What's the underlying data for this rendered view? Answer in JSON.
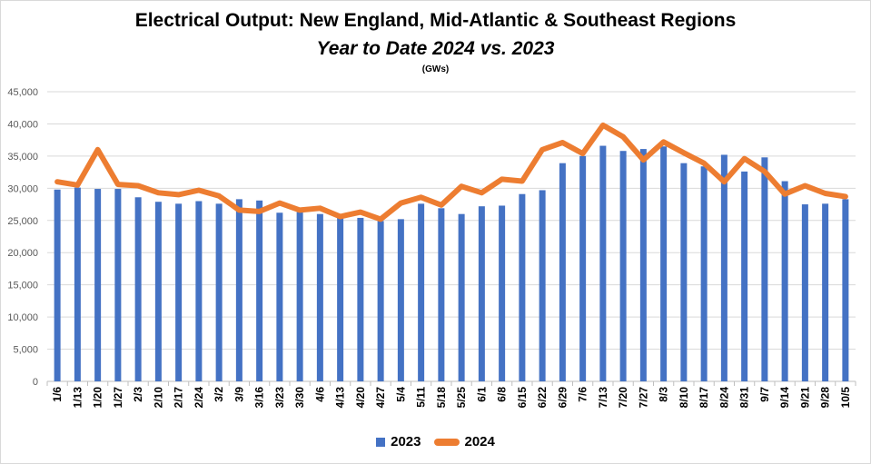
{
  "chart_data": {
    "type": "bar",
    "title": "Electrical Output:  New England, Mid-Atlantic & Southeast Regions",
    "subtitle": "Year to Date 2024 vs. 2023",
    "unit_label": "(GWs)",
    "ylim": [
      0,
      45000
    ],
    "yticks": [
      "0",
      "5,000",
      "10,000",
      "15,000",
      "20,000",
      "25,000",
      "30,000",
      "35,000",
      "40,000",
      "45,000"
    ],
    "grid": true,
    "legend_position": "bottom",
    "categories": [
      "1/6",
      "1/13",
      "1/20",
      "1/27",
      "2/3",
      "2/10",
      "2/17",
      "2/24",
      "3/2",
      "3/9",
      "3/16",
      "3/23",
      "3/30",
      "4/6",
      "4/13",
      "4/20",
      "4/27",
      "5/4",
      "5/11",
      "5/18",
      "5/25",
      "6/1",
      "6/8",
      "6/15",
      "6/22",
      "6/29",
      "7/6",
      "7/13",
      "7/20",
      "7/27",
      "8/3",
      "8/10",
      "8/17",
      "8/24",
      "8/31",
      "9/7",
      "9/14",
      "9/21",
      "9/28",
      "10/5"
    ],
    "series": [
      {
        "name": "2023",
        "type": "bar",
        "color": "#4472C4",
        "values": [
          29800,
          30100,
          29900,
          29900,
          28600,
          27900,
          27600,
          28000,
          27600,
          28300,
          28100,
          26200,
          26300,
          26000,
          25400,
          25400,
          24900,
          25200,
          27600,
          26900,
          26000,
          27200,
          27300,
          29100,
          29700,
          33900,
          35000,
          36600,
          35800,
          36100,
          36500,
          33900,
          33400,
          35200,
          32600,
          34800,
          31100,
          27500,
          27600,
          28300
        ]
      },
      {
        "name": "2024",
        "type": "line",
        "color": "#ED7D31",
        "values": [
          31000,
          30500,
          36000,
          30600,
          30400,
          29300,
          29000,
          29700,
          28800,
          26600,
          26400,
          27700,
          26600,
          26900,
          25600,
          26300,
          25200,
          27700,
          28600,
          27400,
          30300,
          29300,
          31400,
          31100,
          36000,
          37100,
          35400,
          39800,
          38000,
          34400,
          37200,
          35500,
          33900,
          31000,
          34600,
          32600,
          29100,
          30400,
          29200,
          28700
        ]
      }
    ]
  }
}
